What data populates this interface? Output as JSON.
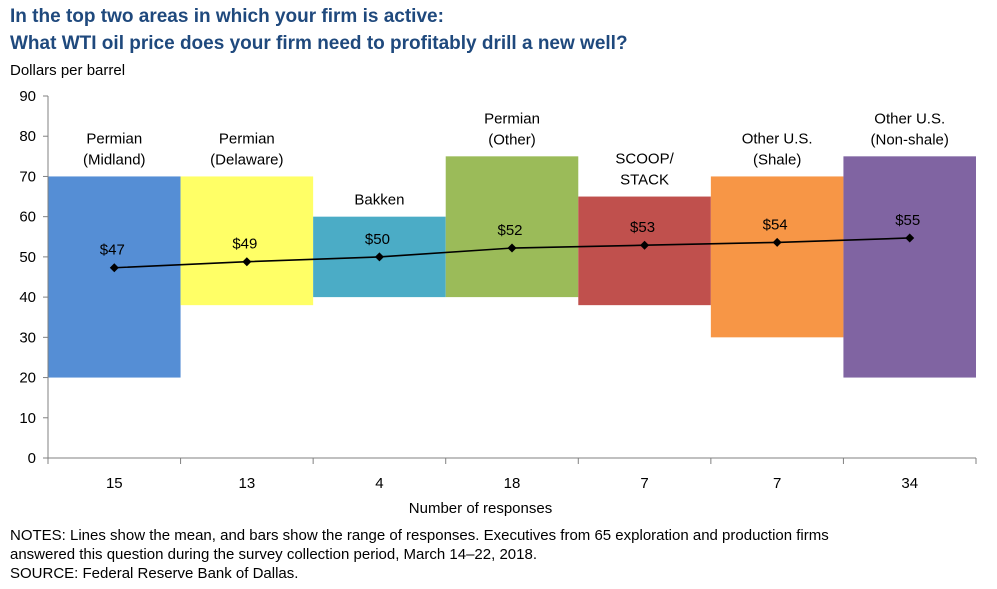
{
  "title_line1": "In the top two areas in which your firm is active:",
  "title_line2": "What WTI oil price does your firm need to profitably drill a new well?",
  "chart_data": {
    "type": "bar",
    "title": "In the top two areas in which your firm is active: What WTI oil price does your firm need to profitably drill a new well?",
    "ylabel": "Dollars per barrel",
    "xlabel": "Number of responses",
    "ylim": [
      0,
      90
    ],
    "yticks": [
      0,
      10,
      20,
      30,
      40,
      50,
      60,
      70,
      80,
      90
    ],
    "bars": [
      {
        "label": [
          "Permian",
          "(Midland)"
        ],
        "responses": "15",
        "low": 20,
        "high": 70,
        "mean": 47.3,
        "mean_label": "$47",
        "color": "#558ed5"
      },
      {
        "label": [
          "Permian",
          "(Delaware)"
        ],
        "responses": "13",
        "low": 38,
        "high": 70,
        "mean": 48.8,
        "mean_label": "$49",
        "color": "#ffff66"
      },
      {
        "label": [
          "Bakken"
        ],
        "responses": "4",
        "low": 40,
        "high": 60,
        "mean": 50.0,
        "mean_label": "$50",
        "color": "#4bacc6"
      },
      {
        "label": [
          "Permian",
          "(Other)"
        ],
        "responses": "18",
        "low": 40,
        "high": 75,
        "mean": 52.2,
        "mean_label": "$52",
        "color": "#9bbb59"
      },
      {
        "label": [
          "SCOOP/",
          "STACK"
        ],
        "responses": "7",
        "low": 38,
        "high": 65,
        "mean": 52.9,
        "mean_label": "$53",
        "color": "#c0504d"
      },
      {
        "label": [
          "Other U.S.",
          "(Shale)"
        ],
        "responses": "7",
        "low": 30,
        "high": 70,
        "mean": 53.6,
        "mean_label": "$54",
        "color": "#f79646"
      },
      {
        "label": [
          "Other U.S.",
          "(Non-shale)"
        ],
        "responses": "34",
        "low": 20,
        "high": 75,
        "mean": 54.7,
        "mean_label": "$55",
        "color": "#8064a2"
      }
    ]
  },
  "notes_line1": "NOTES:  Lines show the mean, and bars show the range of responses. Executives  from 65 exploration  and production firms",
  "notes_line2": "answered this question during the survey collection period, March 14–22, 2018.",
  "source": "SOURCE:  Federal Reserve  Bank of Dallas."
}
